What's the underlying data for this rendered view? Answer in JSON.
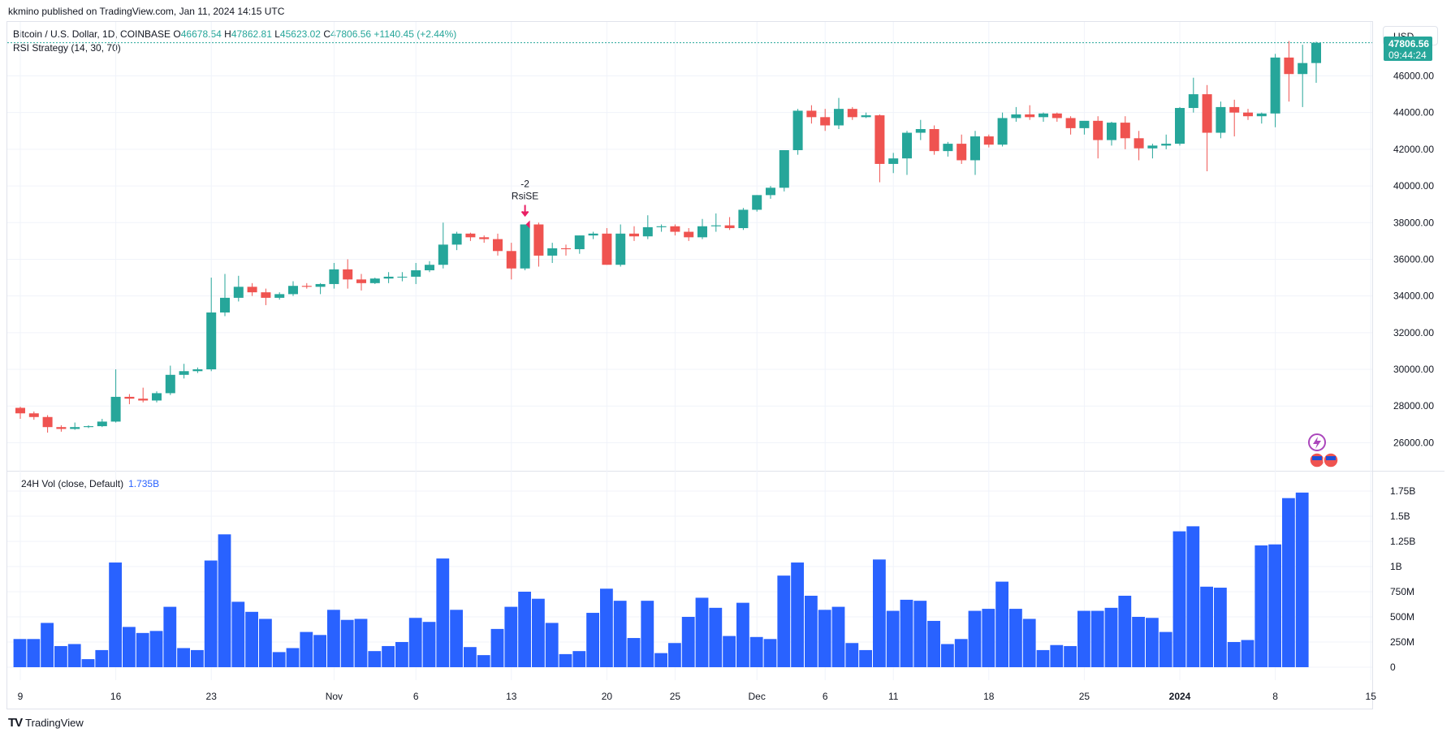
{
  "header": {
    "published": "kkmino published on TradingView.com, Jan 11, 2024 14:15 UTC"
  },
  "legend": {
    "symbol": "Bitcoin / U.S. Dollar, 1D, COINBASE",
    "o_label": "O",
    "o": "46678.54",
    "h_label": "H",
    "h": "47862.81",
    "l_label": "L",
    "l": "45623.02",
    "c_label": "C",
    "c": "47806.56",
    "change": "+1140.45 (+2.44%)",
    "strategy": "RSI Strategy (14, 30, 70)"
  },
  "volume_legend": {
    "label": "24H Vol (close, Default)",
    "value": "1.735B"
  },
  "currency": "USD",
  "last_price": {
    "price": "47806.56",
    "countdown": "09:44:24"
  },
  "annotation": {
    "qty": "-2",
    "name": "RsiSE"
  },
  "footer": {
    "brand": "TradingView"
  },
  "colors": {
    "up": "#26a69a",
    "down": "#ef5350",
    "volume": "#2962ff",
    "grid": "#f0f3fa"
  },
  "chart_data": [
    {
      "type": "candlestick",
      "title": "Bitcoin / U.S. Dollar, 1D, COINBASE",
      "ylim": [
        25000,
        48500
      ],
      "price_ticks": [
        "26000.00",
        "28000.00",
        "30000.00",
        "32000.00",
        "34000.00",
        "36000.00",
        "38000.00",
        "40000.00",
        "42000.00",
        "44000.00",
        "46000.00"
      ],
      "x_ticks": [
        {
          "label": "9",
          "i": 0
        },
        {
          "label": "16",
          "i": 7
        },
        {
          "label": "23",
          "i": 14
        },
        {
          "label": "Nov",
          "i": 23
        },
        {
          "label": "6",
          "i": 29
        },
        {
          "label": "13",
          "i": 36
        },
        {
          "label": "20",
          "i": 43
        },
        {
          "label": "25",
          "i": 48
        },
        {
          "label": "Dec",
          "i": 54
        },
        {
          "label": "6",
          "i": 59
        },
        {
          "label": "11",
          "i": 64
        },
        {
          "label": "18",
          "i": 71
        },
        {
          "label": "25",
          "i": 78
        },
        {
          "label": "2024",
          "i": 85
        },
        {
          "label": "8",
          "i": 92
        },
        {
          "label": "15",
          "i": 99
        }
      ],
      "dates": [
        "Oct 9",
        "Oct 10",
        "Oct 11",
        "Oct 12",
        "Oct 13",
        "Oct 14",
        "Oct 15",
        "Oct 16",
        "Oct 17",
        "Oct 18",
        "Oct 19",
        "Oct 20",
        "Oct 21",
        "Oct 22",
        "Oct 23",
        "Oct 24",
        "Oct 25",
        "Oct 26",
        "Oct 27",
        "Oct 28",
        "Oct 29",
        "Oct 30",
        "Oct 31",
        "Nov 1",
        "Nov 2",
        "Nov 3",
        "Nov 4",
        "Nov 5",
        "Nov 6",
        "Nov 7",
        "Nov 8",
        "Nov 9",
        "Nov 10",
        "Nov 11",
        "Nov 12",
        "Nov 13",
        "Nov 14",
        "Nov 15",
        "Nov 16",
        "Nov 17",
        "Nov 18",
        "Nov 19",
        "Nov 20",
        "Nov 21",
        "Nov 22",
        "Nov 23",
        "Nov 24",
        "Nov 25",
        "Nov 26",
        "Nov 27",
        "Nov 28",
        "Nov 29",
        "Nov 30",
        "Dec 1",
        "Dec 2",
        "Dec 3",
        "Dec 4",
        "Dec 5",
        "Dec 6",
        "Dec 7",
        "Dec 8",
        "Dec 9",
        "Dec 10",
        "Dec 11",
        "Dec 12",
        "Dec 13",
        "Dec 14",
        "Dec 15",
        "Dec 16",
        "Dec 17",
        "Dec 18",
        "Dec 19",
        "Dec 20",
        "Dec 21",
        "Dec 22",
        "Dec 23",
        "Dec 24",
        "Dec 25",
        "Dec 26",
        "Dec 27",
        "Dec 28",
        "Dec 29",
        "Dec 30",
        "Dec 31",
        "Jan 1",
        "Jan 2",
        "Jan 3",
        "Jan 4",
        "Jan 5",
        "Jan 6",
        "Jan 7",
        "Jan 8",
        "Jan 9",
        "Jan 10",
        "Jan 11"
      ],
      "ohlc": [
        [
          27900,
          27960,
          27300,
          27600
        ],
        [
          27600,
          27700,
          27250,
          27400
        ],
        [
          27400,
          27500,
          26550,
          26850
        ],
        [
          26850,
          26950,
          26600,
          26750
        ],
        [
          26750,
          27100,
          26700,
          26850
        ],
        [
          26850,
          26950,
          26800,
          26900
        ],
        [
          26900,
          27300,
          26850,
          27150
        ],
        [
          27150,
          30000,
          27100,
          28500
        ],
        [
          28500,
          28650,
          28100,
          28400
        ],
        [
          28400,
          29000,
          28200,
          28300
        ],
        [
          28300,
          28800,
          28200,
          28700
        ],
        [
          28700,
          30200,
          28600,
          29700
        ],
        [
          29700,
          30300,
          29500,
          29900
        ],
        [
          29900,
          30100,
          29800,
          30000
        ],
        [
          30000,
          35000,
          29900,
          33100
        ],
        [
          33100,
          35200,
          32900,
          33900
        ],
        [
          33900,
          35100,
          33700,
          34500
        ],
        [
          34500,
          34700,
          34000,
          34200
        ],
        [
          34200,
          34400,
          33500,
          33900
        ],
        [
          33900,
          34200,
          33800,
          34100
        ],
        [
          34100,
          34800,
          34000,
          34550
        ],
        [
          34550,
          34700,
          34400,
          34500
        ],
        [
          34500,
          34700,
          34100,
          34650
        ],
        [
          34650,
          35800,
          34400,
          35450
        ],
        [
          35450,
          36000,
          34400,
          34900
        ],
        [
          34900,
          35200,
          34300,
          34700
        ],
        [
          34700,
          35000,
          34650,
          34950
        ],
        [
          34950,
          35300,
          34700,
          35050
        ],
        [
          35050,
          35300,
          34800,
          35050
        ],
        [
          35050,
          35800,
          34650,
          35400
        ],
        [
          35400,
          35900,
          35300,
          35700
        ],
        [
          35700,
          38000,
          35500,
          36800
        ],
        [
          36800,
          37500,
          36500,
          37400
        ],
        [
          37400,
          37450,
          37000,
          37200
        ],
        [
          37200,
          37300,
          36900,
          37100
        ],
        [
          37100,
          37400,
          36200,
          36450
        ],
        [
          36450,
          36900,
          34900,
          35500
        ],
        [
          35500,
          37900,
          35400,
          37900
        ],
        [
          37900,
          38000,
          35600,
          36200
        ],
        [
          36200,
          36900,
          35800,
          36600
        ],
        [
          36600,
          36800,
          36200,
          36550
        ],
        [
          36550,
          37300,
          36300,
          37300
        ],
        [
          37300,
          37500,
          37100,
          37400
        ],
        [
          37400,
          37700,
          35700,
          35700
        ],
        [
          35700,
          37900,
          35600,
          37400
        ],
        [
          37400,
          37800,
          37000,
          37250
        ],
        [
          37250,
          38400,
          37100,
          37750
        ],
        [
          37750,
          37900,
          37500,
          37800
        ],
        [
          37800,
          37900,
          37300,
          37500
        ],
        [
          37500,
          37700,
          37000,
          37200
        ],
        [
          37200,
          38200,
          37100,
          37800
        ],
        [
          37800,
          38500,
          37500,
          37850
        ],
        [
          37850,
          38300,
          37600,
          37700
        ],
        [
          37700,
          38800,
          37600,
          38700
        ],
        [
          38700,
          39500,
          38600,
          39500
        ],
        [
          39500,
          40000,
          39300,
          39900
        ],
        [
          39900,
          41800,
          39700,
          41950
        ],
        [
          41950,
          44200,
          41700,
          44100
        ],
        [
          44100,
          44400,
          43400,
          43750
        ],
        [
          43750,
          44200,
          43000,
          43300
        ],
        [
          43300,
          44800,
          43100,
          44200
        ],
        [
          44200,
          44300,
          43600,
          43750
        ],
        [
          43750,
          44000,
          43700,
          43850
        ],
        [
          43850,
          43900,
          40200,
          41200
        ],
        [
          41200,
          41800,
          40700,
          41500
        ],
        [
          41500,
          43000,
          40600,
          42900
        ],
        [
          42900,
          43600,
          42500,
          43100
        ],
        [
          43100,
          43300,
          41700,
          41900
        ],
        [
          41900,
          42400,
          41600,
          42300
        ],
        [
          42300,
          42800,
          41200,
          41400
        ],
        [
          41400,
          43000,
          40600,
          42700
        ],
        [
          42700,
          42800,
          42100,
          42250
        ],
        [
          42250,
          44000,
          42150,
          43700
        ],
        [
          43700,
          44300,
          43500,
          43900
        ],
        [
          43900,
          44400,
          43600,
          43750
        ],
        [
          43750,
          44000,
          43500,
          43950
        ],
        [
          43950,
          44000,
          43500,
          43700
        ],
        [
          43700,
          43800,
          42800,
          43150
        ],
        [
          43150,
          43400,
          42800,
          43550
        ],
        [
          43550,
          43800,
          41500,
          42500
        ],
        [
          42500,
          43500,
          42200,
          43450
        ],
        [
          43450,
          43800,
          42000,
          42600
        ],
        [
          42600,
          43000,
          41400,
          42050
        ],
        [
          42050,
          42300,
          41500,
          42200
        ],
        [
          42200,
          42800,
          42000,
          42300
        ],
        [
          42300,
          44300,
          42200,
          44250
        ],
        [
          44250,
          45900,
          44000,
          45000
        ],
        [
          45000,
          45500,
          40800,
          42900
        ],
        [
          42900,
          44600,
          42600,
          44300
        ],
        [
          44300,
          44700,
          42700,
          44000
        ],
        [
          44000,
          44200,
          43600,
          43800
        ],
        [
          43800,
          44000,
          43400,
          43950
        ],
        [
          43950,
          47200,
          43200,
          47000
        ],
        [
          47000,
          47900,
          44600,
          46100
        ],
        [
          46100,
          47700,
          44300,
          46700
        ],
        [
          46700,
          47862,
          45623,
          47806
        ]
      ]
    },
    {
      "type": "bar",
      "title": "24H Vol (close, Default)",
      "ylim": [
        0,
        1.85
      ],
      "unit": "B",
      "volume_ticks": [
        {
          "label": "0",
          "v": 0
        },
        {
          "label": "250M",
          "v": 0.25
        },
        {
          "label": "500M",
          "v": 0.5
        },
        {
          "label": "750M",
          "v": 0.75
        },
        {
          "label": "1B",
          "v": 1.0
        },
        {
          "label": "1.25B",
          "v": 1.25
        },
        {
          "label": "1.5B",
          "v": 1.5
        },
        {
          "label": "1.75B",
          "v": 1.75
        }
      ],
      "values": [
        0.28,
        0.28,
        0.44,
        0.21,
        0.23,
        0.08,
        0.17,
        1.04,
        0.4,
        0.34,
        0.36,
        0.6,
        0.19,
        0.17,
        1.06,
        1.32,
        0.65,
        0.55,
        0.48,
        0.15,
        0.19,
        0.35,
        0.32,
        0.57,
        0.47,
        0.48,
        0.16,
        0.21,
        0.25,
        0.49,
        0.45,
        1.08,
        0.57,
        0.2,
        0.12,
        0.38,
        0.6,
        0.75,
        0.68,
        0.44,
        0.13,
        0.16,
        0.54,
        0.78,
        0.66,
        0.29,
        0.66,
        0.14,
        0.24,
        0.5,
        0.69,
        0.59,
        0.31,
        0.64,
        0.3,
        0.28,
        0.91,
        1.04,
        0.71,
        0.57,
        0.6,
        0.24,
        0.17,
        1.07,
        0.56,
        0.67,
        0.66,
        0.46,
        0.23,
        0.28,
        0.56,
        0.58,
        0.85,
        0.58,
        0.48,
        0.17,
        0.22,
        0.21,
        0.56,
        0.56,
        0.59,
        0.71,
        0.5,
        0.49,
        0.35,
        1.35,
        1.4,
        0.8,
        0.79,
        0.25,
        0.27,
        1.21,
        1.22,
        1.68,
        1.735
      ]
    }
  ]
}
